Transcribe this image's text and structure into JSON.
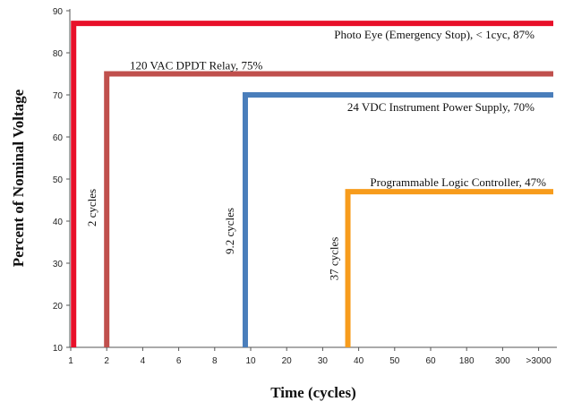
{
  "chart_data": {
    "type": "line",
    "title": "",
    "xlabel": "Time (cycles)",
    "ylabel": "Percent of Nominal Voltage",
    "ylim": [
      10,
      90
    ],
    "y_ticks": [
      10,
      20,
      30,
      40,
      50,
      60,
      70,
      80,
      90
    ],
    "x_ticks": [
      "1",
      "2",
      "4",
      "6",
      "8",
      "10",
      "20",
      "30",
      "40",
      "50",
      "60",
      "180",
      "300",
      ">3000"
    ],
    "series": [
      {
        "name": "Photo Eye (Emergency Stop), < 1cyc, 87%",
        "color": "#e8102a",
        "step_x_index": 0.08,
        "level": 87,
        "duration_label": ""
      },
      {
        "name": "120 VAC DPDT Relay, 75%",
        "color": "#c0504d",
        "step_x_index": 1.0,
        "level": 75,
        "duration_label": "2 cycles"
      },
      {
        "name": "24 VDC Instrument Power  Supply, 70%",
        "color": "#4a7ebb",
        "step_x_index": 4.85,
        "level": 70,
        "duration_label": "9.2 cycles"
      },
      {
        "name": "Programmable Logic Controller, 47%",
        "color": "#f79c1c",
        "step_x_index": 7.7,
        "level": 47,
        "duration_label": "37 cycles"
      }
    ]
  }
}
